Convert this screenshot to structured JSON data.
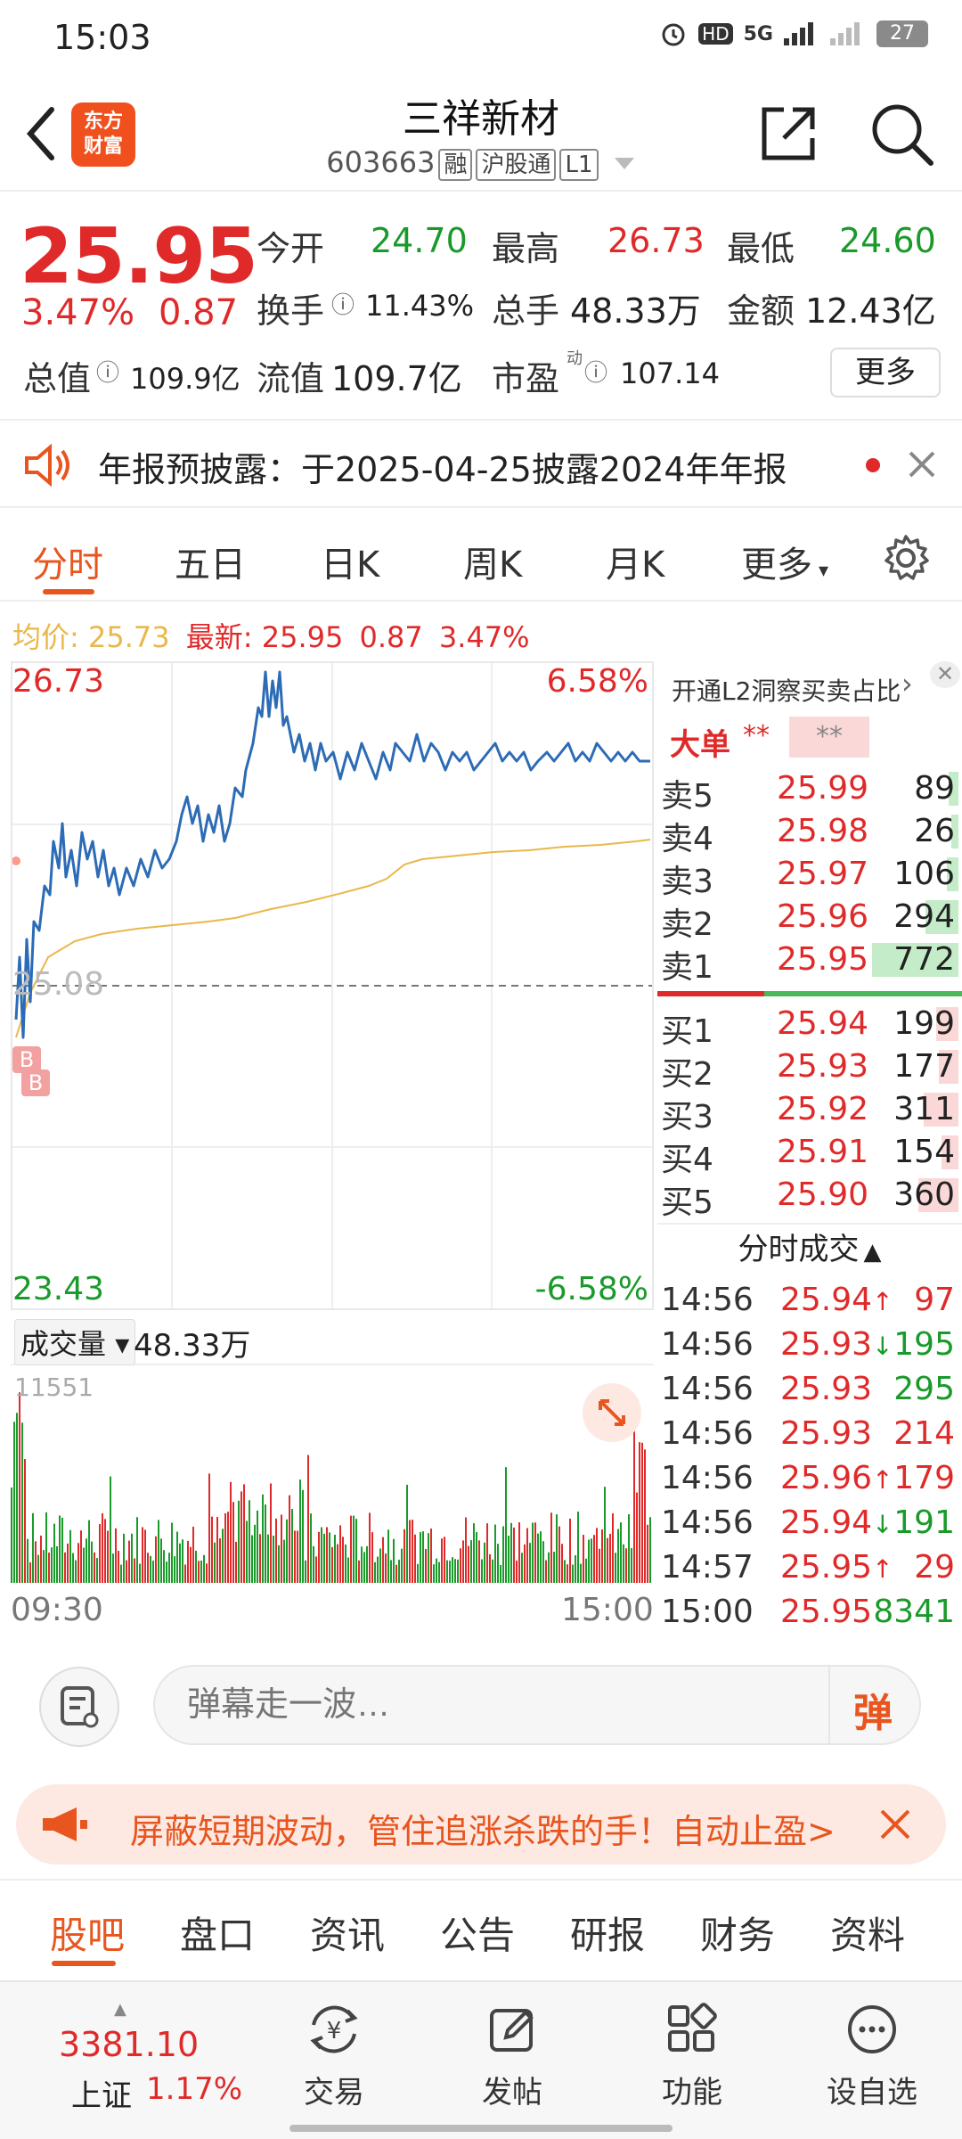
{
  "status_bar": {
    "time": "15:03",
    "hd": "HD",
    "network": "5G",
    "battery": "27"
  },
  "header": {
    "logo_line1": "东方",
    "logo_line2": "财富",
    "name": "三祥新材",
    "code": "603663",
    "tags": [
      "融",
      "沪股通",
      "L1"
    ]
  },
  "quote": {
    "price": "25.95",
    "pct": "3.47%",
    "change": "0.87",
    "open_label": "今开",
    "open": "24.70",
    "high_label": "最高",
    "high": "26.73",
    "low_label": "最低",
    "low": "24.60",
    "turnover_label": "换手",
    "turnover": "11.43%",
    "volume_label": "总手",
    "volume": "48.33万",
    "amount_label": "金额",
    "amount": "12.43亿",
    "mcap_label": "总值",
    "mcap": "109.9亿",
    "float_label": "流值",
    "float": "109.7亿",
    "pe_label": "市盈",
    "pe_sup": "动",
    "pe": "107.14",
    "more": "更多"
  },
  "announcement": {
    "text": "年报预披露：于2025-04-25披露2024年年报"
  },
  "chart_tabs": [
    "分时",
    "五日",
    "日K",
    "周K",
    "月K",
    "更多"
  ],
  "avg_line": {
    "avg_label": "均价:",
    "avg": "25.73",
    "last_label": "最新:",
    "last": "25.95",
    "chg": "0.87",
    "pct": "3.47%"
  },
  "chart": {
    "top_price": "26.73",
    "top_pct": "6.58%",
    "base_price": "25.08",
    "bottom_price": "23.43",
    "bottom_pct": "-6.58%",
    "marker_b": "B"
  },
  "volume": {
    "label": "成交量",
    "total": "48.33万",
    "max": "11551",
    "start_time": "09:30",
    "end_time": "15:00"
  },
  "orderbook": {
    "promo": "开通L2洞察买卖占比",
    "big_label": "大单",
    "big_val1": "**",
    "big_val2": "**",
    "asks": [
      {
        "label": "卖5",
        "price": "25.99",
        "vol": "89"
      },
      {
        "label": "卖4",
        "price": "25.98",
        "vol": "26"
      },
      {
        "label": "卖3",
        "price": "25.97",
        "vol": "106"
      },
      {
        "label": "卖2",
        "price": "25.96",
        "vol": "294"
      },
      {
        "label": "卖1",
        "price": "25.95",
        "vol": "772"
      }
    ],
    "bids": [
      {
        "label": "买1",
        "price": "25.94",
        "vol": "199"
      },
      {
        "label": "买2",
        "price": "25.93",
        "vol": "177"
      },
      {
        "label": "买3",
        "price": "25.92",
        "vol": "311"
      },
      {
        "label": "买4",
        "price": "25.91",
        "vol": "154"
      },
      {
        "label": "买5",
        "price": "25.90",
        "vol": "360"
      }
    ],
    "trades_label": "分时成交",
    "trades": [
      {
        "time": "14:56",
        "price": "25.94",
        "dir": "↑",
        "vol": "97",
        "color": "red"
      },
      {
        "time": "14:56",
        "price": "25.93",
        "dir": "↓",
        "vol": "195",
        "color": "green"
      },
      {
        "time": "14:56",
        "price": "25.93",
        "dir": "",
        "vol": "295",
        "color": "green"
      },
      {
        "time": "14:56",
        "price": "25.93",
        "dir": "",
        "vol": "214",
        "color": "red"
      },
      {
        "time": "14:56",
        "price": "25.96",
        "dir": "↑",
        "vol": "179",
        "color": "red"
      },
      {
        "time": "14:56",
        "price": "25.94",
        "dir": "↓",
        "vol": "191",
        "color": "green"
      },
      {
        "time": "14:57",
        "price": "25.95",
        "dir": "↑",
        "vol": "29",
        "color": "red"
      },
      {
        "time": "15:00",
        "price": "25.95",
        "dir": "",
        "vol": "8341",
        "color": "green"
      }
    ]
  },
  "comment": {
    "placeholder": "弹幕走一波…",
    "danmu_btn": "弹"
  },
  "promo": {
    "text": "屏蔽短期波动，管住追涨杀跌的手！自动止盈>"
  },
  "news_tabs": [
    "股吧",
    "盘口",
    "资讯",
    "公告",
    "研报",
    "财务",
    "资料"
  ],
  "bottom_nav": {
    "index_value": "3381.10",
    "index_name": "上证",
    "index_pct": "1.17%",
    "items": [
      "交易",
      "发帖",
      "功能",
      "设自选"
    ]
  },
  "colors": {
    "up": "#e02a2a",
    "down": "#1a9a2a",
    "accent": "#e8551e",
    "avg_line": "#e8b84a",
    "price_line": "#2c6bb5"
  }
}
